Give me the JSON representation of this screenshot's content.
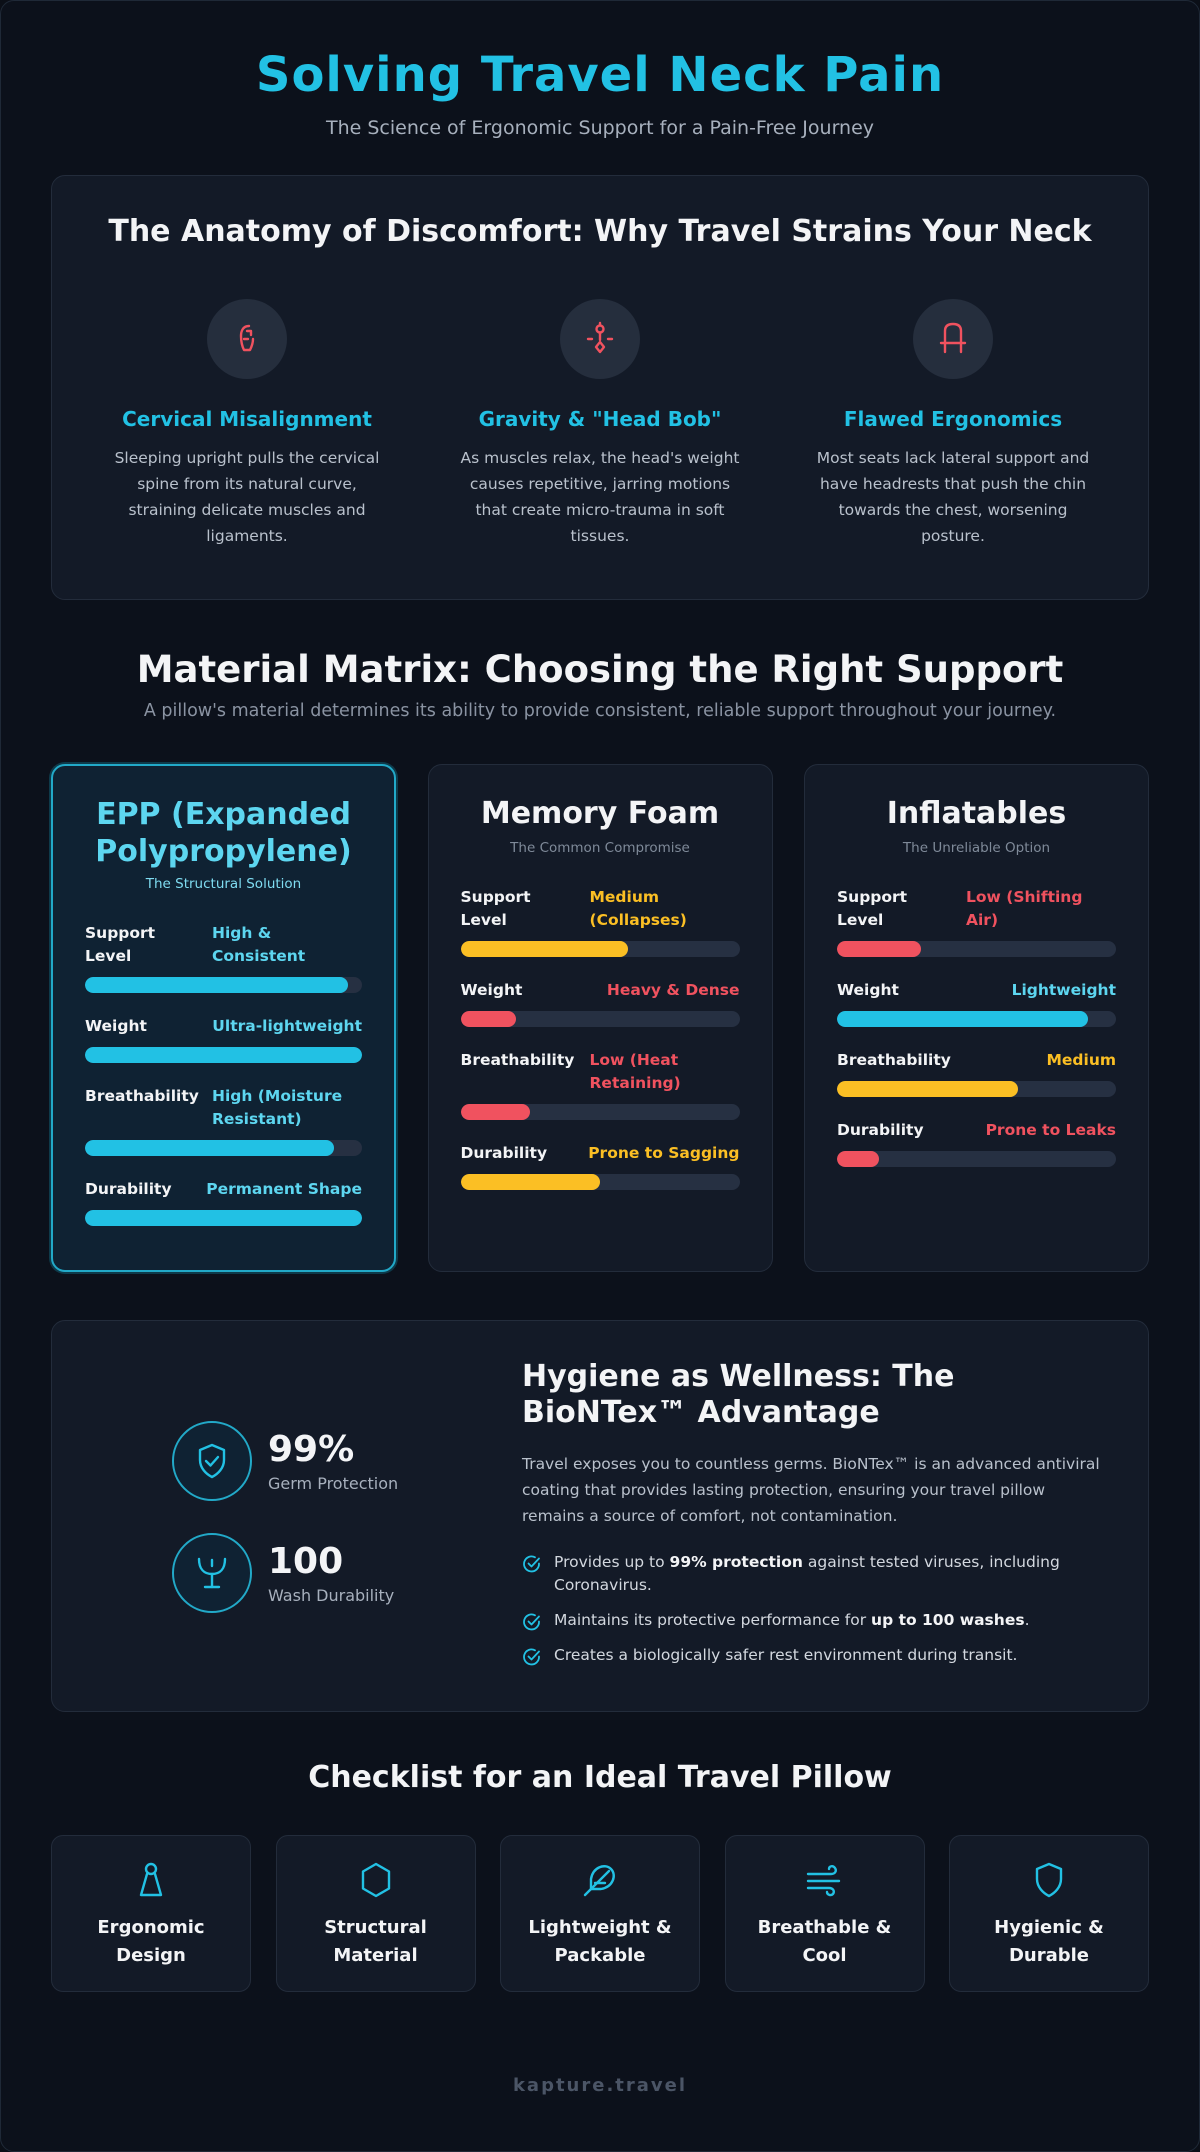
{
  "header": {
    "title": "Solving Travel Neck Pain",
    "subtitle": "The Science of Ergonomic Support for a Pain-Free Journey"
  },
  "anatomy": {
    "title": "The Anatomy of Discomfort: Why Travel Strains Your Neck",
    "items": [
      {
        "icon": "spine-icon",
        "title": "Cervical Misalignment",
        "text": "Sleeping upright pulls the cervical spine from its natural curve, straining delicate muscles and ligaments."
      },
      {
        "icon": "gravity-icon",
        "title": "Gravity & \"Head Bob\"",
        "text": "As muscles relax, the head's weight causes repetitive, jarring motions that create micro-trauma in soft tissues."
      },
      {
        "icon": "seat-icon",
        "title": "Flawed Ergonomics",
        "text": "Most seats lack lateral support and have headrests that push the chin towards the chest, worsening posture."
      }
    ]
  },
  "matrix": {
    "title": "Material Matrix: Choosing the Right Support",
    "subtitle": "A pillow's material determines its ability to provide consistent, reliable support throughout your journey.",
    "cards": [
      {
        "title": "EPP (Expanded Polypropylene)",
        "tag": "The Structural Solution",
        "attributes": [
          {
            "name": "Support Level",
            "value": "High & Consistent",
            "level": 0.95,
            "color": "#22c1e4"
          },
          {
            "name": "Weight",
            "value": "Ultra-lightweight",
            "level": 1.0,
            "color": "#22c1e4"
          },
          {
            "name": "Breathability",
            "value": "High (Moisture Resistant)",
            "level": 0.9,
            "color": "#22c1e4"
          },
          {
            "name": "Durability",
            "value": "Permanent Shape",
            "level": 1.0,
            "color": "#22c1e4"
          }
        ]
      },
      {
        "title": "Memory Foam",
        "tag": "The Common Compromise",
        "attributes": [
          {
            "name": "Support Level",
            "value": "Medium (Collapses)",
            "level": 0.6,
            "color": "#fbbf24"
          },
          {
            "name": "Weight",
            "value": "Heavy & Dense",
            "level": 0.2,
            "color": "#f0525f"
          },
          {
            "name": "Breathability",
            "value": "Low (Heat Retaining)",
            "level": 0.25,
            "color": "#f0525f"
          },
          {
            "name": "Durability",
            "value": "Prone to Sagging",
            "level": 0.5,
            "color": "#fbbf24"
          }
        ]
      },
      {
        "title": "Inflatables",
        "tag": "The Unreliable Option",
        "attributes": [
          {
            "name": "Support Level",
            "value": "Low (Shifting Air)",
            "level": 0.3,
            "color": "#f0525f"
          },
          {
            "name": "Weight",
            "value": "Lightweight",
            "level": 0.9,
            "color": "#22c1e4"
          },
          {
            "name": "Breathability",
            "value": "Medium",
            "level": 0.65,
            "color": "#fbbf24"
          },
          {
            "name": "Durability",
            "value": "Prone to Leaks",
            "level": 0.15,
            "color": "#f0525f"
          }
        ]
      }
    ]
  },
  "hygiene": {
    "stats": [
      {
        "icon": "shield-check-icon",
        "number": "99%",
        "label": "Germ Protection"
      },
      {
        "icon": "washbasin-icon",
        "number": "100",
        "label": "Wash Durability"
      }
    ],
    "title": "Hygiene as Wellness: The BioNTex™ Advantage",
    "description": "Travel exposes you to countless germs. BioNTex™ is an advanced antiviral coating that provides lasting protection, ensuring your travel pillow remains a source of comfort, not contamination.",
    "checks": [
      {
        "pre": "Provides up to ",
        "bold": "99% protection",
        "post": " against tested viruses, including Coronavirus."
      },
      {
        "pre": "Maintains its protective performance for ",
        "bold": "up to 100 washes",
        "post": "."
      },
      {
        "pre": "Creates a biologically safer rest environment during transit.",
        "bold": "",
        "post": ""
      }
    ]
  },
  "checklist": {
    "title": "Checklist for an Ideal Travel Pillow",
    "items": [
      {
        "icon": "ergonomic-person-icon",
        "label": "Ergonomic Design"
      },
      {
        "icon": "hexagon-icon",
        "label": "Structural Material"
      },
      {
        "icon": "feather-icon",
        "label": "Lightweight & Packable"
      },
      {
        "icon": "wind-icon",
        "label": "Breathable & Cool"
      },
      {
        "icon": "shield-icon",
        "label": "Hygienic & Durable"
      }
    ]
  },
  "footer": {
    "text": "kapture.travel"
  },
  "colors": {
    "accent": "#22c1e4",
    "warning": "#fbbf24",
    "danger": "#f0525f"
  }
}
